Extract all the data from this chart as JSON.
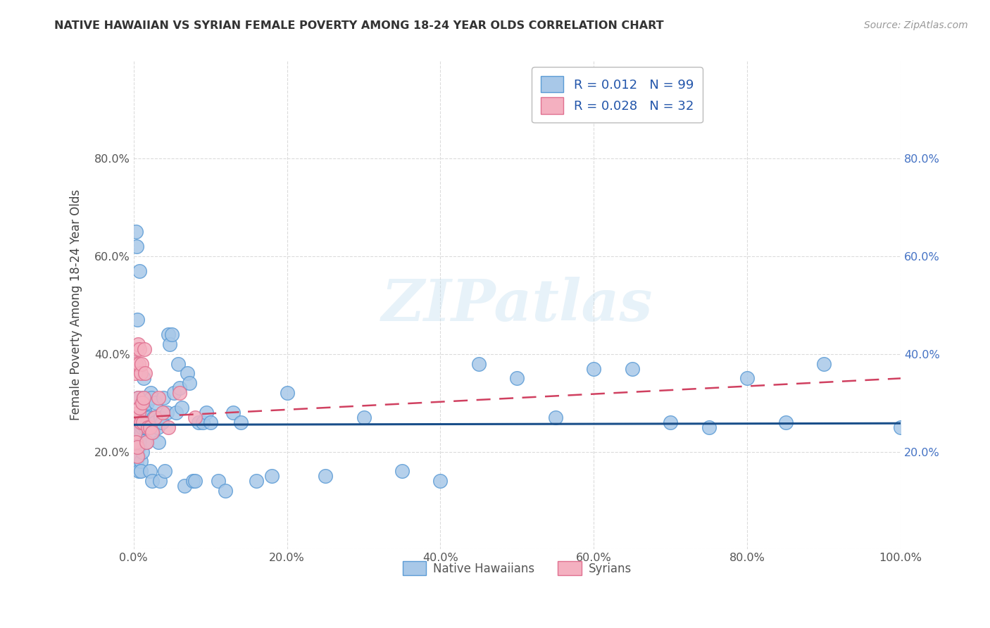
{
  "title": "NATIVE HAWAIIAN VS SYRIAN FEMALE POVERTY AMONG 18-24 YEAR OLDS CORRELATION CHART",
  "source": "Source: ZipAtlas.com",
  "ylabel": "Female Poverty Among 18-24 Year Olds",
  "xlim": [
    0.0,
    1.0
  ],
  "ylim": [
    0.0,
    1.0
  ],
  "xticks": [
    0.0,
    0.2,
    0.4,
    0.6,
    0.8,
    1.0
  ],
  "xticklabels": [
    "0.0%",
    "20.0%",
    "40.0%",
    "60.0%",
    "80.0%",
    "100.0%"
  ],
  "yticks_left": [
    0.0,
    0.2,
    0.4,
    0.6,
    0.8
  ],
  "yticklabels_left": [
    "",
    "20.0%",
    "40.0%",
    "60.0%",
    "80.0%"
  ],
  "yticks_right": [
    0.2,
    0.4,
    0.6,
    0.8
  ],
  "yticklabels_right": [
    "20.0%",
    "40.0%",
    "60.0%",
    "80.0%"
  ],
  "hawaiian_color": "#a8c8e8",
  "syrian_color": "#f4b0c0",
  "hawaiian_edge": "#5b9bd5",
  "syrian_edge": "#e07090",
  "trendline_hawaiian": "#1a4f8a",
  "trendline_syrian": "#d04060",
  "r_hawaiian": 0.012,
  "n_hawaiian": 99,
  "r_syrian": 0.028,
  "n_syrian": 32,
  "watermark": "ZIPatlas",
  "hawaiian_x": [
    0.001,
    0.001,
    0.002,
    0.002,
    0.002,
    0.003,
    0.003,
    0.003,
    0.004,
    0.004,
    0.004,
    0.005,
    0.005,
    0.005,
    0.006,
    0.006,
    0.006,
    0.007,
    0.007,
    0.007,
    0.008,
    0.008,
    0.008,
    0.009,
    0.009,
    0.009,
    0.01,
    0.01,
    0.011,
    0.011,
    0.012,
    0.012,
    0.013,
    0.013,
    0.014,
    0.015,
    0.015,
    0.016,
    0.016,
    0.017,
    0.018,
    0.018,
    0.019,
    0.02,
    0.021,
    0.022,
    0.023,
    0.024,
    0.025,
    0.026,
    0.028,
    0.029,
    0.031,
    0.032,
    0.034,
    0.035,
    0.037,
    0.039,
    0.041,
    0.043,
    0.045,
    0.047,
    0.05,
    0.053,
    0.055,
    0.058,
    0.06,
    0.063,
    0.066,
    0.07,
    0.073,
    0.077,
    0.08,
    0.085,
    0.09,
    0.095,
    0.1,
    0.11,
    0.12,
    0.13,
    0.14,
    0.16,
    0.18,
    0.2,
    0.25,
    0.3,
    0.35,
    0.4,
    0.45,
    0.5,
    0.55,
    0.6,
    0.65,
    0.7,
    0.75,
    0.8,
    0.85,
    0.9,
    1.0
  ],
  "hawaiian_y": [
    0.22,
    0.19,
    0.21,
    0.24,
    0.27,
    0.23,
    0.25,
    0.65,
    0.25,
    0.18,
    0.62,
    0.24,
    0.22,
    0.47,
    0.31,
    0.27,
    0.19,
    0.16,
    0.25,
    0.21,
    0.23,
    0.22,
    0.57,
    0.25,
    0.18,
    0.16,
    0.27,
    0.24,
    0.2,
    0.25,
    0.31,
    0.26,
    0.27,
    0.35,
    0.3,
    0.28,
    0.25,
    0.31,
    0.25,
    0.22,
    0.3,
    0.27,
    0.26,
    0.27,
    0.16,
    0.32,
    0.31,
    0.14,
    0.24,
    0.27,
    0.26,
    0.3,
    0.25,
    0.22,
    0.14,
    0.27,
    0.26,
    0.31,
    0.16,
    0.28,
    0.44,
    0.42,
    0.44,
    0.32,
    0.28,
    0.38,
    0.33,
    0.29,
    0.13,
    0.36,
    0.34,
    0.14,
    0.14,
    0.26,
    0.26,
    0.28,
    0.26,
    0.14,
    0.12,
    0.28,
    0.26,
    0.14,
    0.15,
    0.32,
    0.15,
    0.27,
    0.16,
    0.14,
    0.38,
    0.35,
    0.27,
    0.37,
    0.37,
    0.26,
    0.25,
    0.35,
    0.26,
    0.38,
    0.25
  ],
  "syrian_x": [
    0.001,
    0.002,
    0.002,
    0.003,
    0.003,
    0.004,
    0.005,
    0.005,
    0.006,
    0.006,
    0.007,
    0.007,
    0.008,
    0.008,
    0.009,
    0.009,
    0.01,
    0.011,
    0.012,
    0.013,
    0.014,
    0.015,
    0.017,
    0.019,
    0.021,
    0.024,
    0.028,
    0.032,
    0.038,
    0.045,
    0.06,
    0.08
  ],
  "syrian_y": [
    0.27,
    0.24,
    0.36,
    0.22,
    0.38,
    0.41,
    0.19,
    0.21,
    0.42,
    0.31,
    0.38,
    0.28,
    0.29,
    0.41,
    0.26,
    0.36,
    0.38,
    0.3,
    0.26,
    0.31,
    0.41,
    0.36,
    0.22,
    0.25,
    0.25,
    0.24,
    0.27,
    0.31,
    0.28,
    0.25,
    0.32,
    0.27
  ]
}
